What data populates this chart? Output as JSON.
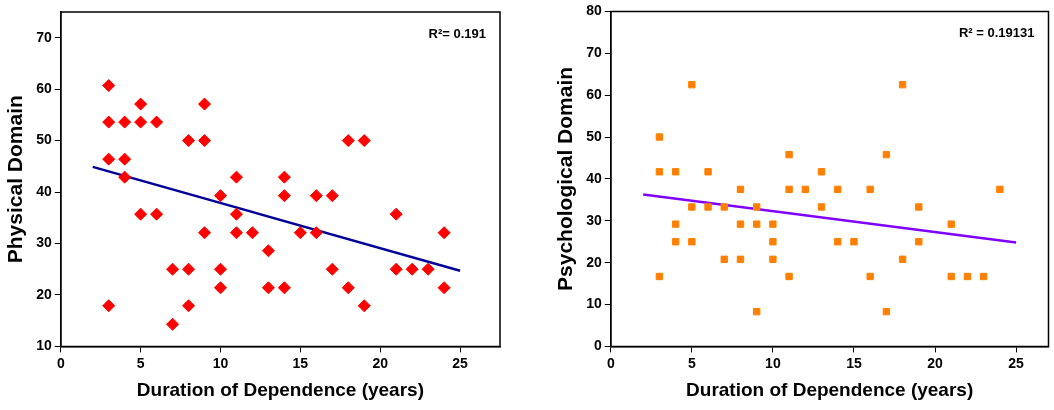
{
  "chart_data": [
    {
      "type": "scatter",
      "xlabel": "Duration of Dependence (years)",
      "ylabel": "Physical Domain",
      "xlim": [
        0,
        27.5
      ],
      "xticks": [
        0,
        5,
        10,
        15,
        20,
        25
      ],
      "ylim": [
        10,
        75
      ],
      "yticks": [
        10,
        20,
        30,
        40,
        50,
        60,
        70
      ],
      "grid": false,
      "legend": false,
      "annotations": [
        "R²= 0.191"
      ],
      "series": [
        {
          "type": "scatter",
          "marker": "diamond",
          "color": "#ff0000",
          "x": [
            3,
            3,
            3,
            3,
            4,
            4,
            4,
            5,
            5,
            5,
            6,
            6,
            7,
            7,
            8,
            8,
            8,
            9,
            9,
            9,
            10,
            10,
            10,
            11,
            11,
            11,
            12,
            13,
            13,
            14,
            14,
            14,
            15,
            16,
            16,
            17,
            17,
            18,
            18,
            19,
            19,
            21,
            21,
            22,
            23,
            24,
            24
          ],
          "values": [
            60.7,
            53.6,
            46.4,
            17.9,
            53.6,
            46.4,
            42.9,
            57.1,
            53.6,
            35.7,
            53.6,
            35.7,
            25,
            14.3,
            50,
            25,
            17.9,
            57.1,
            50,
            32.1,
            39.3,
            25,
            21.4,
            42.9,
            35.7,
            32.1,
            32.1,
            28.6,
            21.4,
            42.9,
            39.3,
            21.4,
            32.1,
            39.3,
            32.1,
            39.3,
            25,
            50,
            21.4,
            50,
            17.9,
            35.7,
            25,
            25,
            25,
            32.1,
            21.4
          ]
        },
        {
          "type": "line",
          "marker": "none",
          "color": "#000099",
          "x": [
            2,
            25
          ],
          "values": [
            44.9,
            24.7
          ]
        }
      ]
    },
    {
      "type": "scatter",
      "xlabel": "Duration of Dependence (years)",
      "ylabel": "Psychological Domain",
      "xlim": [
        0,
        27
      ],
      "xticks": [
        0,
        5,
        10,
        15,
        20,
        25
      ],
      "ylim": [
        0,
        80
      ],
      "yticks": [
        0,
        10,
        20,
        30,
        40,
        50,
        60,
        70,
        80
      ],
      "grid": false,
      "legend": false,
      "annotations": [
        "R² = 0.19131"
      ],
      "series": [
        {
          "type": "scatter",
          "marker": "square",
          "color": "#ff8000",
          "x": [
            3,
            3,
            3,
            4,
            4,
            4,
            5,
            5,
            5,
            6,
            6,
            7,
            7,
            8,
            8,
            8,
            9,
            9,
            9,
            10,
            10,
            10,
            11,
            11,
            11,
            12,
            13,
            13,
            14,
            14,
            15,
            16,
            16,
            17,
            17,
            18,
            18,
            19,
            19,
            21,
            21,
            22,
            23,
            24
          ],
          "values": [
            50,
            41.7,
            16.7,
            41.7,
            29.2,
            25,
            62.5,
            33.3,
            25,
            41.7,
            33.3,
            33.3,
            20.8,
            37.5,
            29.2,
            20.8,
            33.3,
            29.2,
            8.3,
            29.2,
            25,
            20.8,
            45.8,
            37.5,
            16.7,
            37.5,
            41.7,
            33.3,
            37.5,
            25,
            25,
            37.5,
            16.7,
            45.8,
            8.3,
            62.5,
            20.8,
            33.3,
            25,
            29.2,
            16.7,
            16.7,
            16.7,
            37.5
          ]
        },
        {
          "type": "line",
          "marker": "none",
          "color": "#8000ff",
          "x": [
            2,
            25
          ],
          "values": [
            36.3,
            24.8
          ]
        }
      ]
    }
  ]
}
